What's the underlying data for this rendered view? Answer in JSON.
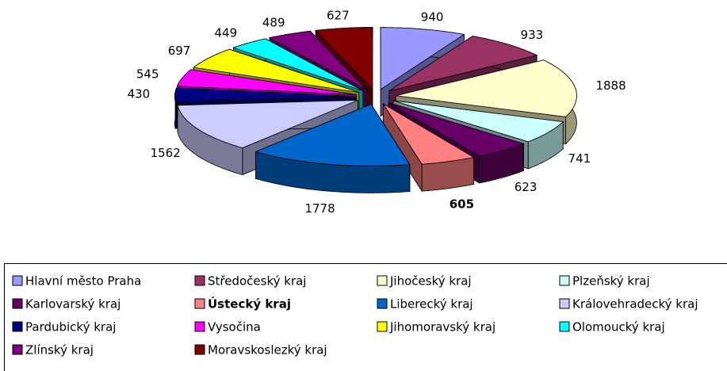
{
  "chart_data": {
    "type": "pie3d",
    "categories": [
      "Hlavní město Praha",
      "Středočeský kraj",
      "Jihočeský kraj",
      "Plzeňský kraj",
      "Karlovarský kraj",
      "Ústecký kraj",
      "Liberecký kraj",
      "Královehradecký kraj",
      "Pardubický kraj",
      "Vysočina",
      "Jihomoravský kraj",
      "Olomoucký kraj",
      "Zlínský kraj",
      "Moravskoslezký kraj"
    ],
    "values": [
      940,
      933,
      1888,
      741,
      623,
      605,
      1778,
      1562,
      430,
      545,
      697,
      449,
      489,
      627
    ],
    "colors": [
      "#9999ff",
      "#993366",
      "#ffffcc",
      "#ccffff",
      "#660066",
      "#ff8080",
      "#0066cc",
      "#ccccff",
      "#000080",
      "#ff00ff",
      "#ffff00",
      "#00ffff",
      "#800080",
      "#800000"
    ],
    "bold_category": "Ústecký kraj",
    "legend": "bottom"
  }
}
